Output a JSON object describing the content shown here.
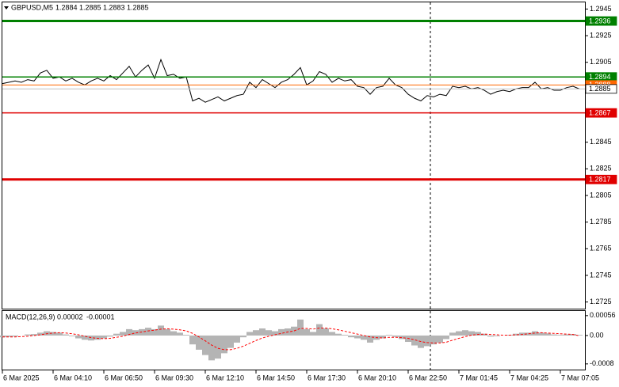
{
  "chart_data": [
    {
      "type": "line",
      "symbol": "GBPUSD,M5",
      "ohlc": [
        1.2884,
        1.2885,
        1.2883,
        1.2885
      ],
      "color": "#000000",
      "categories": [
        "6 Mar 2025",
        null,
        null,
        null,
        null,
        null,
        null,
        null,
        "6 Mar 04:10",
        null,
        null,
        null,
        null,
        null,
        null,
        null,
        "6 Mar 06:50",
        null,
        null,
        null,
        null,
        null,
        null,
        null,
        "6 Mar 09:30",
        null,
        null,
        null,
        null,
        null,
        null,
        null,
        "6 Mar 12:10",
        null,
        null,
        null,
        null,
        null,
        null,
        null,
        "6 Mar 14:50",
        null,
        null,
        null,
        null,
        null,
        null,
        null,
        "6 Mar 17:30",
        null,
        null,
        null,
        null,
        null,
        null,
        null,
        "6 Mar 20:10",
        null,
        null,
        null,
        null,
        null,
        null,
        null,
        "6 Mar 22:50",
        null,
        null,
        null,
        null,
        null,
        null,
        null,
        "7 Mar 01:45",
        null,
        null,
        null,
        null,
        null,
        null,
        null,
        "7 Mar 04:25",
        null,
        null,
        null,
        null,
        null,
        null,
        null,
        "7 Mar 07:05",
        null,
        null,
        null
      ],
      "values": [
        1.2889,
        1.289,
        1.2891,
        1.289,
        1.2892,
        1.2891,
        1.2897,
        1.2899,
        1.2893,
        1.2894,
        1.2891,
        1.2893,
        1.289,
        1.2888,
        1.2891,
        1.2893,
        1.2891,
        1.2895,
        1.2892,
        1.2897,
        1.2902,
        1.2894,
        1.2899,
        1.2903,
        1.2893,
        1.2907,
        1.2895,
        1.2896,
        1.2893,
        1.2894,
        1.2876,
        1.2878,
        1.2875,
        1.2877,
        1.2879,
        1.2876,
        1.2878,
        1.288,
        1.2881,
        1.289,
        1.2886,
        1.2892,
        1.2889,
        1.2886,
        1.289,
        1.2892,
        1.2896,
        1.2901,
        1.2888,
        1.2891,
        1.2898,
        1.2896,
        1.289,
        1.2893,
        1.2891,
        1.2892,
        1.2887,
        1.2886,
        1.2881,
        1.2886,
        1.2887,
        1.2893,
        1.2888,
        1.2886,
        1.2881,
        1.2878,
        1.2876,
        1.288,
        1.2879,
        1.2881,
        1.288,
        1.2887,
        1.2886,
        1.2887,
        1.2885,
        1.2886,
        1.2884,
        1.2881,
        1.2883,
        1.2884,
        1.2883,
        1.2885,
        1.2886,
        1.2886,
        1.289,
        1.2885,
        1.2886,
        1.2884,
        1.2884,
        1.2886,
        1.2887,
        1.2885
      ],
      "ylim": [
        1.272,
        1.295
      ],
      "yticks": [
        1.2945,
        1.2925,
        1.2905,
        1.2845,
        1.2825,
        1.2805,
        1.2785,
        1.2765,
        1.2745,
        1.2725
      ],
      "levels": [
        {
          "value": 1.2936,
          "color": "#008000",
          "style": "thick"
        },
        {
          "value": 1.2894,
          "color": "#008000",
          "style": "thin"
        },
        {
          "value": 1.2888,
          "color": "#ff6600",
          "style": "hair"
        },
        {
          "value": 1.2867,
          "color": "#e00000",
          "style": "thin"
        },
        {
          "value": 1.2817,
          "color": "#e00000",
          "style": "thick"
        },
        {
          "value": 1.2885,
          "color": "#c0c0c0",
          "style": "current"
        }
      ]
    },
    {
      "type": "macd",
      "title": "MACD(12,26,9)",
      "readout": [
        2e-05,
        -1e-05
      ],
      "ylim": [
        -0.00096,
        0.00069
      ],
      "yticks": [
        0.00056,
        {
          "value": 0,
          "label": "0.00"
        },
        -0.0008
      ],
      "histogram": {
        "color": "#b4b4b4",
        "values": [
          -5e-05,
          -4e-05,
          -3e-05,
          0,
          3e-05,
          4e-05,
          8e-05,
          0.00012,
          0.0001,
          8e-05,
          3e-05,
          -2e-05,
          -8e-05,
          -0.00012,
          -0.00014,
          -0.00012,
          -8e-05,
          -3e-05,
          5e-05,
          0.0001,
          0.00018,
          0.00015,
          0.00018,
          0.00022,
          0.00018,
          0.00028,
          0.00018,
          0.00012,
          8e-05,
          2e-05,
          -0.00025,
          -0.0004,
          -0.00055,
          -0.0007,
          -0.00065,
          -0.0005,
          -0.00035,
          -0.0002,
          -5e-05,
          0.0001,
          0.00015,
          0.0002,
          0.00015,
          0.00012,
          0.00018,
          0.0002,
          0.00025,
          0.00045,
          0.00018,
          0.0001,
          0.00032,
          0.0002,
          0.0001,
          5e-05,
          2e-05,
          -5e-05,
          -8e-05,
          -0.00012,
          -0.0002,
          -0.00012,
          -8e-05,
          2e-05,
          -4e-05,
          -0.0001,
          -0.00018,
          -0.00028,
          -0.00035,
          -0.0003,
          -0.00025,
          -0.0002,
          -0.0001,
          8e-05,
          0.00012,
          0.00015,
          0.00012,
          0.0001,
          5e-05,
          -3e-05,
          -2e-05,
          0,
          2e-05,
          5e-05,
          8e-05,
          8e-05,
          0.00012,
          8e-05,
          6e-05,
          3e-05,
          2e-05,
          3e-05,
          4e-05,
          2e-05
        ]
      },
      "signal": {
        "color": "#ff0000",
        "values": [
          -4e-05,
          -4e-05,
          -4e-05,
          -3e-05,
          -2e-05,
          0,
          2e-05,
          5e-05,
          7e-05,
          8e-05,
          7e-05,
          5e-05,
          2e-05,
          -2e-05,
          -6e-05,
          -8e-05,
          -9e-05,
          -8e-05,
          -5e-05,
          -2e-05,
          3e-05,
          7e-05,
          0.0001,
          0.00013,
          0.00015,
          0.00018,
          0.00019,
          0.00018,
          0.00016,
          0.00013,
          6e-05,
          -4e-05,
          -0.00015,
          -0.00027,
          -0.00036,
          -0.0004,
          -0.0004,
          -0.00036,
          -0.0003,
          -0.00022,
          -0.00014,
          -7e-05,
          -2e-05,
          2e-05,
          6e-05,
          0.0001,
          0.00013,
          0.0002,
          0.0002,
          0.00018,
          0.00021,
          0.00021,
          0.00019,
          0.00016,
          0.00012,
          8e-05,
          4e-05,
          0,
          -4e-05,
          -6e-05,
          -7e-05,
          -5e-05,
          -5e-05,
          -6e-05,
          -8e-05,
          -0.00012,
          -0.00017,
          -0.0002,
          -0.00021,
          -0.00021,
          -0.00019,
          -0.00013,
          -8e-05,
          -3e-05,
          1e-05,
          3e-05,
          4e-05,
          3e-05,
          2e-05,
          1e-05,
          1e-05,
          2e-05,
          3e-05,
          5e-05,
          7e-05,
          8e-05,
          7e-05,
          6e-05,
          5e-05,
          4e-05,
          3e-05,
          -1e-05
        ]
      }
    }
  ]
}
